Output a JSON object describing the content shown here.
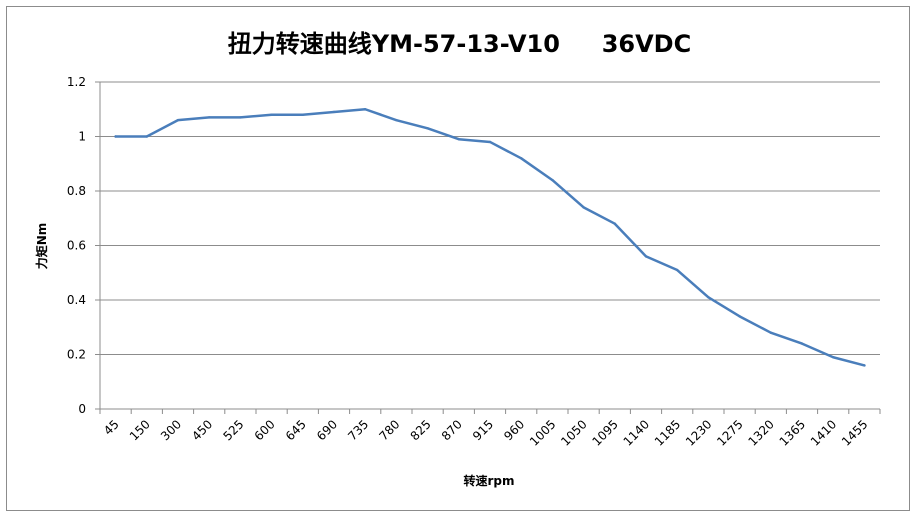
{
  "chart_data": {
    "type": "line",
    "title": "扭力转速曲线YM-57-13-V10     36VDC",
    "xlabel": "转速rpm",
    "ylabel": "力矩Nm",
    "categories": [
      "45",
      "150",
      "300",
      "450",
      "525",
      "600",
      "645",
      "690",
      "735",
      "780",
      "825",
      "870",
      "915",
      "960",
      "1005",
      "1050",
      "1095",
      "1140",
      "1185",
      "1230",
      "1275",
      "1320",
      "1365",
      "1410",
      "1455"
    ],
    "series": [
      {
        "values": [
          1.0,
          1.0,
          1.06,
          1.07,
          1.07,
          1.08,
          1.08,
          1.09,
          1.1,
          1.06,
          1.03,
          0.99,
          0.98,
          0.92,
          0.84,
          0.74,
          0.68,
          0.56,
          0.51,
          0.41,
          0.34,
          0.28,
          0.24,
          0.19,
          0.16
        ],
        "color": "#4a7ebb"
      }
    ],
    "yticks": [
      "0",
      "0.2",
      "0.4",
      "0.6",
      "0.8",
      "1",
      "1.2"
    ],
    "ylim": [
      0,
      1.2
    ],
    "grid": true,
    "legend": "none"
  }
}
